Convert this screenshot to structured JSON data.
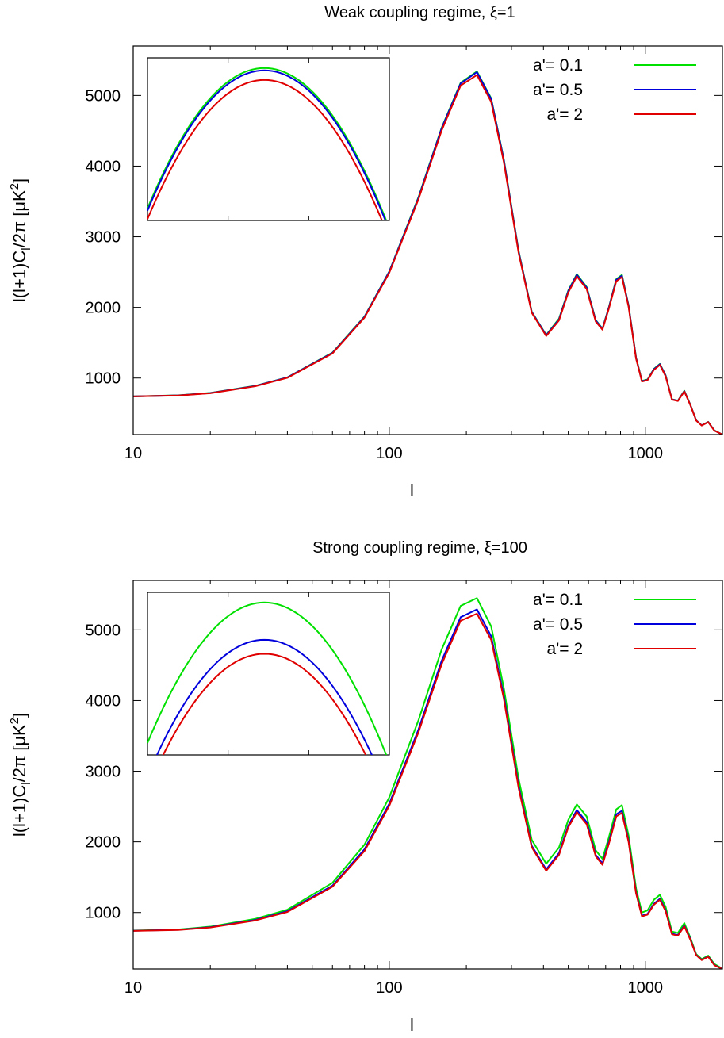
{
  "chart_data": [
    {
      "type": "line",
      "title": "Weak coupling regime, ξ=1",
      "xlabel": "l",
      "ylabel": "l(l+1)C_l/2π [μK²]",
      "x_scale": "log",
      "xlim": [
        10,
        2000
      ],
      "ylim": [
        200,
        5700
      ],
      "xticks": [
        10,
        100,
        1000
      ],
      "yticks": [
        1000,
        2000,
        3000,
        4000,
        5000
      ],
      "legend_position": "top-right",
      "inset": {
        "present": true,
        "shows": "zoom of first acoustic peak"
      },
      "x": [
        10,
        15,
        20,
        30,
        40,
        60,
        80,
        100,
        130,
        160,
        190,
        220,
        250,
        280,
        320,
        360,
        410,
        460,
        500,
        540,
        590,
        640,
        680,
        720,
        770,
        810,
        860,
        920,
        970,
        1020,
        1080,
        1140,
        1200,
        1270,
        1340,
        1420,
        1500,
        1580,
        1660,
        1760,
        1860,
        2000
      ],
      "series": [
        {
          "name": "a'= 0.1",
          "color": "#00e000",
          "values": [
            740,
            755,
            790,
            890,
            1010,
            1360,
            1870,
            2510,
            3560,
            4540,
            5180,
            5340,
            4960,
            4100,
            2800,
            1940,
            1610,
            1840,
            2240,
            2470,
            2290,
            1820,
            1700,
            2000,
            2400,
            2460,
            2030,
            1290,
            960,
            980,
            1130,
            1200,
            1040,
            700,
            680,
            820,
            620,
            400,
            330,
            380,
            260,
            200
          ]
        },
        {
          "name": "a'= 0.5",
          "color": "#0000dd",
          "values": [
            740,
            754,
            788,
            888,
            1008,
            1356,
            1865,
            2505,
            3550,
            4530,
            5170,
            5330,
            4950,
            4090,
            2790,
            1935,
            1605,
            1830,
            2230,
            2460,
            2280,
            1815,
            1695,
            1995,
            2390,
            2450,
            2025,
            1285,
            955,
            975,
            1125,
            1195,
            1035,
            698,
            678,
            815,
            618,
            400,
            330,
            378,
            258,
            200
          ]
        },
        {
          "name": "a'= 2",
          "color": "#e00000",
          "values": [
            740,
            753,
            785,
            884,
            1003,
            1348,
            1855,
            2490,
            3530,
            4500,
            5140,
            5290,
            4910,
            4060,
            2770,
            1925,
            1595,
            1815,
            2210,
            2440,
            2260,
            1800,
            1685,
            1980,
            2370,
            2430,
            2010,
            1275,
            950,
            970,
            1115,
            1185,
            1025,
            695,
            675,
            810,
            615,
            398,
            328,
            376,
            256,
            200
          ]
        }
      ]
    },
    {
      "type": "line",
      "title": "Strong coupling regime, ξ=100",
      "xlabel": "l",
      "ylabel": "l(l+1)C_l/2π [μK²]",
      "x_scale": "log",
      "xlim": [
        10,
        2000
      ],
      "ylim": [
        200,
        5700
      ],
      "xticks": [
        10,
        100,
        1000
      ],
      "yticks": [
        1000,
        2000,
        3000,
        4000,
        5000
      ],
      "legend_position": "top-right",
      "inset": {
        "present": true,
        "shows": "zoom of first acoustic peak"
      },
      "x": [
        10,
        15,
        20,
        30,
        40,
        60,
        80,
        100,
        130,
        160,
        190,
        220,
        250,
        280,
        320,
        360,
        410,
        460,
        500,
        540,
        590,
        640,
        680,
        720,
        770,
        810,
        860,
        920,
        970,
        1020,
        1080,
        1140,
        1200,
        1270,
        1340,
        1420,
        1500,
        1580,
        1660,
        1760,
        1860,
        2000
      ],
      "series": [
        {
          "name": "a'= 0.1",
          "color": "#00e000",
          "values": [
            745,
            760,
            800,
            910,
            1040,
            1420,
            1960,
            2630,
            3720,
            4720,
            5340,
            5450,
            5050,
            4180,
            2890,
            2030,
            1690,
            1920,
            2310,
            2530,
            2360,
            1880,
            1760,
            2060,
            2460,
            2520,
            2090,
            1340,
            1000,
            1030,
            1180,
            1250,
            1080,
            730,
            710,
            850,
            640,
            410,
            340,
            390,
            270,
            205
          ]
        },
        {
          "name": "a'= 0.5",
          "color": "#0000dd",
          "values": [
            742,
            756,
            792,
            895,
            1018,
            1380,
            1895,
            2540,
            3590,
            4560,
            5180,
            5290,
            4910,
            4070,
            2790,
            1945,
            1610,
            1840,
            2230,
            2450,
            2280,
            1815,
            1695,
            1995,
            2390,
            2440,
            2020,
            1285,
            955,
            980,
            1125,
            1195,
            1035,
            700,
            680,
            815,
            620,
            400,
            330,
            378,
            258,
            200
          ]
        },
        {
          "name": "a'= 2",
          "color": "#e00000",
          "values": [
            740,
            753,
            788,
            888,
            1008,
            1365,
            1870,
            2510,
            3550,
            4510,
            5130,
            5230,
            4860,
            4030,
            2760,
            1925,
            1590,
            1815,
            2205,
            2420,
            2250,
            1795,
            1675,
            1970,
            2360,
            2410,
            2000,
            1270,
            945,
            970,
            1110,
            1180,
            1020,
            692,
            672,
            805,
            612,
            396,
            326,
            374,
            254,
            198
          ]
        }
      ]
    }
  ]
}
